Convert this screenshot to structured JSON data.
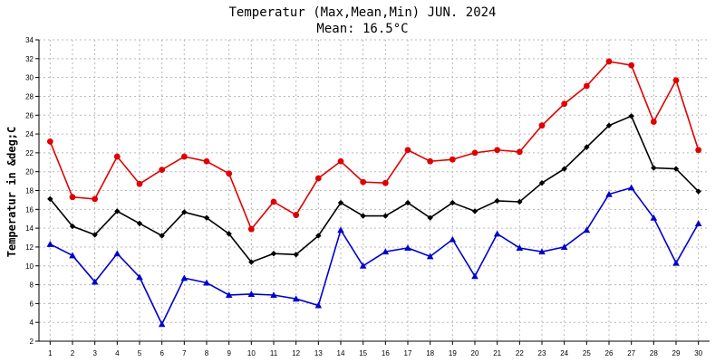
{
  "chart_data": {
    "type": "line",
    "title": "Temperatur (Max,Mean,Min) JUN. 2024",
    "subtitle": "Mean: 16.5°C",
    "ylabel": "Temperatur in &deg;C",
    "xlabel": "",
    "ylim": [
      2,
      34
    ],
    "yticks": [
      2,
      4,
      6,
      8,
      10,
      12,
      14,
      16,
      18,
      20,
      22,
      24,
      26,
      28,
      30,
      32,
      34
    ],
    "grid": true,
    "x": [
      1,
      2,
      3,
      4,
      5,
      6,
      7,
      8,
      9,
      10,
      11,
      12,
      13,
      14,
      15,
      16,
      17,
      18,
      19,
      20,
      21,
      22,
      23,
      24,
      25,
      26,
      27,
      28,
      29,
      30
    ],
    "series": [
      {
        "name": "Max",
        "color": "#e00000",
        "marker": "circle",
        "values": [
          23.2,
          17.3,
          17.1,
          21.6,
          18.7,
          20.2,
          21.6,
          21.1,
          19.8,
          13.9,
          16.8,
          15.4,
          19.3,
          21.1,
          18.9,
          18.8,
          22.3,
          21.1,
          21.3,
          22.0,
          22.3,
          22.1,
          24.9,
          27.2,
          29.1,
          31.7,
          31.3,
          25.3,
          29.7,
          22.3
        ]
      },
      {
        "name": "Mean",
        "color": "#000000",
        "marker": "diamond",
        "values": [
          17.1,
          14.2,
          13.3,
          15.8,
          14.5,
          13.2,
          15.7,
          15.1,
          13.4,
          10.4,
          11.3,
          11.2,
          13.2,
          16.7,
          15.3,
          15.3,
          16.7,
          15.1,
          16.7,
          15.8,
          16.9,
          16.8,
          18.8,
          20.3,
          22.6,
          24.9,
          25.9,
          20.4,
          20.3,
          17.9
        ]
      },
      {
        "name": "Min",
        "color": "#0000cc",
        "marker": "triangle",
        "values": [
          12.3,
          11.1,
          8.3,
          11.3,
          8.8,
          3.8,
          8.7,
          8.2,
          6.9,
          7.0,
          6.9,
          6.5,
          5.8,
          13.8,
          10.0,
          11.5,
          11.9,
          11.0,
          12.8,
          8.9,
          13.4,
          11.9,
          11.5,
          12.0,
          13.8,
          17.6,
          18.3,
          15.1,
          10.3,
          14.5
        ]
      }
    ]
  }
}
